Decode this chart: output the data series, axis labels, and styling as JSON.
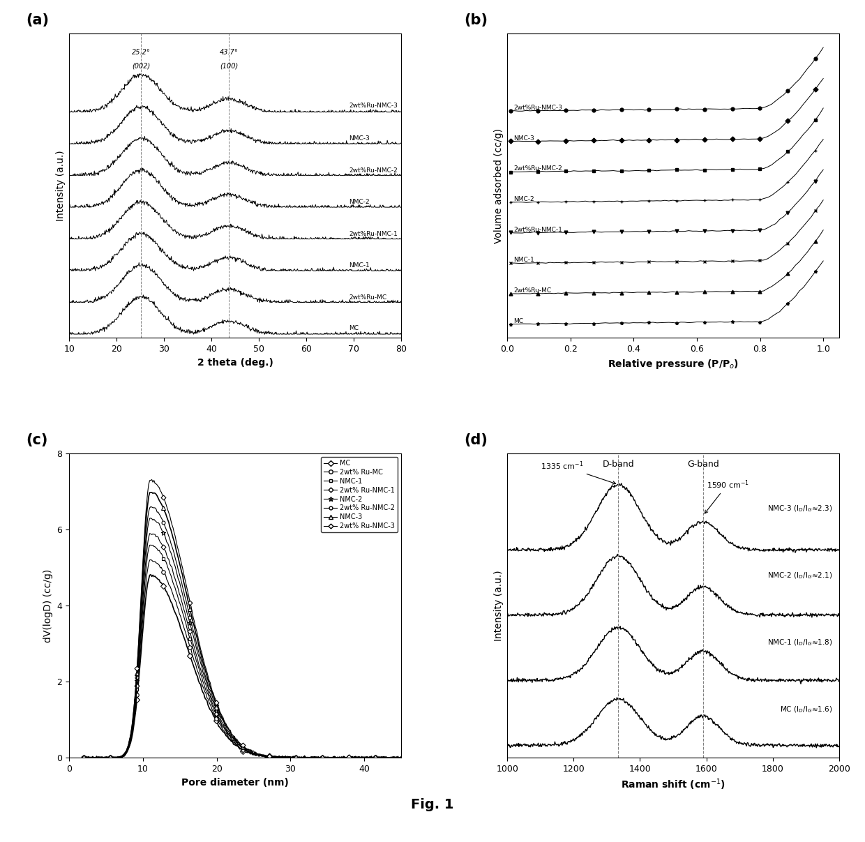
{
  "fig_width": 12.4,
  "fig_height": 12.07,
  "background_color": "#ffffff",
  "panel_labels": [
    "(a)",
    "(b)",
    "(c)",
    "(d)"
  ],
  "panel_label_fontsize": 15,
  "xrd": {
    "xlabel": "2 theta (deg.)",
    "ylabel": "Intensity (a.u.)",
    "xlim": [
      10,
      80
    ],
    "xticks": [
      10,
      20,
      30,
      40,
      50,
      60,
      70,
      80
    ],
    "peak1_x": 25.2,
    "peak2_x": 43.7,
    "series_labels": [
      "MC",
      "2wt%Ru-MC",
      "NMC-1",
      "2wt%Ru-NMC-1",
      "NMC-2",
      "2wt%Ru-NMC-2",
      "NMC-3",
      "2wt%Ru-NMC-3"
    ]
  },
  "bet": {
    "xlabel": "Relative pressure (P/P$_o$)",
    "ylabel": "Volume adsorbed (cc/g)",
    "xlim": [
      0.0,
      1.05
    ],
    "xticks": [
      0.0,
      0.2,
      0.4,
      0.6,
      0.8,
      1.0
    ],
    "series_labels": [
      "MC",
      "2wt%Ru-MC",
      "NMC-1",
      "2wt%Ru-NMC-1",
      "NMC-2",
      "2wt%Ru-NMC-2",
      "NMC-3",
      "2wt%Ru-NMC-3"
    ]
  },
  "psd": {
    "xlabel": "Pore diameter (nm)",
    "ylabel": "dV(logD) (cc/g)",
    "xlim": [
      0,
      45
    ],
    "ylim": [
      0,
      8
    ],
    "xticks": [
      0,
      10,
      20,
      30,
      40
    ],
    "yticks": [
      0,
      2,
      4,
      6,
      8
    ],
    "series_labels": [
      "MC",
      "2wt% Ru-MC",
      "NMC-1",
      "2wt% Ru-NMC-1",
      "NMC-2",
      "2wt% Ru-NMC-2",
      "NMC-3",
      "2wt% Ru-NMC-3"
    ]
  },
  "raman": {
    "xlabel": "Raman shift (cm$^{-1}$)",
    "ylabel": "Intensity (a.u.)",
    "xlim": [
      1000,
      2000
    ],
    "xticks": [
      1000,
      1200,
      1400,
      1600,
      1800,
      2000
    ],
    "dband_x": 1335,
    "gband_x": 1590,
    "dband_label": "D-band",
    "gband_label": "G-band",
    "dband_wavenumber": "1335 cm$^{-1}$",
    "gband_wavenumber": "1590 cm$^{-1}$",
    "series_labels": [
      "MC (I$_D$/I$_G$≈1.6)",
      "NMC-1 (I$_D$/I$_G$≈1.8)",
      "NMC-2 (I$_D$/I$_G$≈2.1)",
      "NMC-3 (I$_D$/I$_G$≈2.3)"
    ]
  },
  "fig_label": "Fig. 1"
}
